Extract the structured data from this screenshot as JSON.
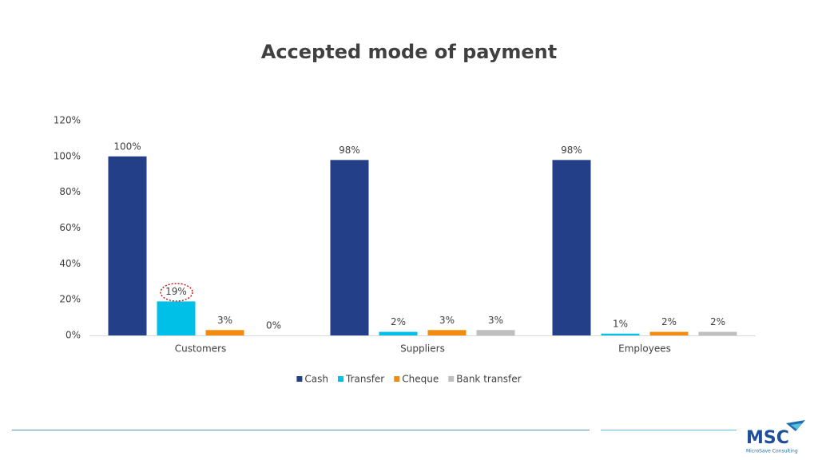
{
  "chart_data": {
    "type": "bar",
    "title": "Accepted mode of payment",
    "categories": [
      "Customers",
      "Suppliers",
      "Employees"
    ],
    "series": [
      {
        "name": "Cash",
        "color": "#223f87",
        "values": [
          100,
          98,
          98
        ],
        "value_labels": [
          "100%",
          "98%",
          "98%"
        ]
      },
      {
        "name": "Transfer",
        "color": "#00c0e8",
        "values": [
          19,
          2,
          1
        ],
        "value_labels": [
          "19%",
          "2%",
          "1%"
        ]
      },
      {
        "name": "Cheque",
        "color": "#f28c0f",
        "values": [
          3,
          3,
          2
        ],
        "value_labels": [
          "3%",
          "3%",
          "2%"
        ]
      },
      {
        "name": "Bank transfer",
        "color": "#bfbfbf",
        "values": [
          0,
          3,
          2
        ],
        "value_labels": [
          "0%",
          "3%",
          "2%"
        ]
      }
    ],
    "ylim": [
      0,
      120
    ],
    "yticks": [
      {
        "value": 0,
        "label": "0%"
      },
      {
        "value": 20,
        "label": "20%"
      },
      {
        "value": 40,
        "label": "40%"
      },
      {
        "value": 60,
        "label": "60%"
      },
      {
        "value": 80,
        "label": "80%"
      },
      {
        "value": 100,
        "label": "100%"
      },
      {
        "value": 120,
        "label": "120%"
      }
    ],
    "grid": false,
    "legend": "bottom"
  },
  "logo": {
    "name": "MSC",
    "tagline": "MicroSave Consulting"
  }
}
